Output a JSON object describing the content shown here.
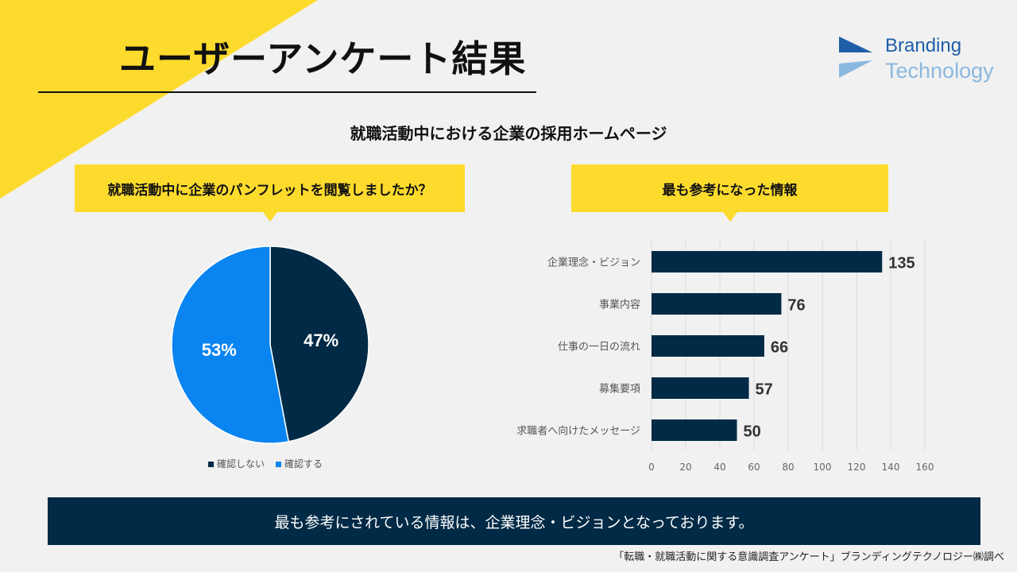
{
  "page": {
    "title": "ユーザーアンケート結果",
    "subtitle": "就職活動中における企業の採用ホームページ",
    "logo_line1": "Branding",
    "logo_line2": "Technology",
    "question_left": "就職活動中に企業のパンフレットを閲覧しましたか？",
    "question_right": "最も参考になった情報",
    "banner": "最も参考にされている情報は、企業理念・ビジョンとなっております。",
    "source": "「転職・就職活動に関する意識調査アンケート」ブランディングテクノロジー㈱調べ"
  },
  "colors": {
    "navy": "#002a46",
    "blue": "#0a84f0",
    "yellow": "#fddb2d"
  },
  "chart_data": [
    {
      "type": "pie",
      "title": "就職活動中に企業のパンフレットを閲覧しましたか？",
      "slices": [
        {
          "label": "確認しない",
          "value": 47,
          "display": "47%",
          "color": "#002a46"
        },
        {
          "label": "確認する",
          "value": 53,
          "display": "53%",
          "color": "#0a84f0"
        }
      ],
      "legend_position": "bottom"
    },
    {
      "type": "bar",
      "orientation": "horizontal",
      "title": "最も参考になった情報",
      "categories": [
        "企業理念・ビジョン",
        "事業内容",
        "仕事の一日の流れ",
        "募集要項",
        "求職者へ向けたメッセージ"
      ],
      "values": [
        135,
        76,
        66,
        57,
        50
      ],
      "xlim": [
        0,
        160
      ],
      "xticks": [
        0,
        20,
        40,
        60,
        80,
        100,
        120,
        140,
        160
      ],
      "grid": true,
      "color": "#002a46"
    }
  ]
}
